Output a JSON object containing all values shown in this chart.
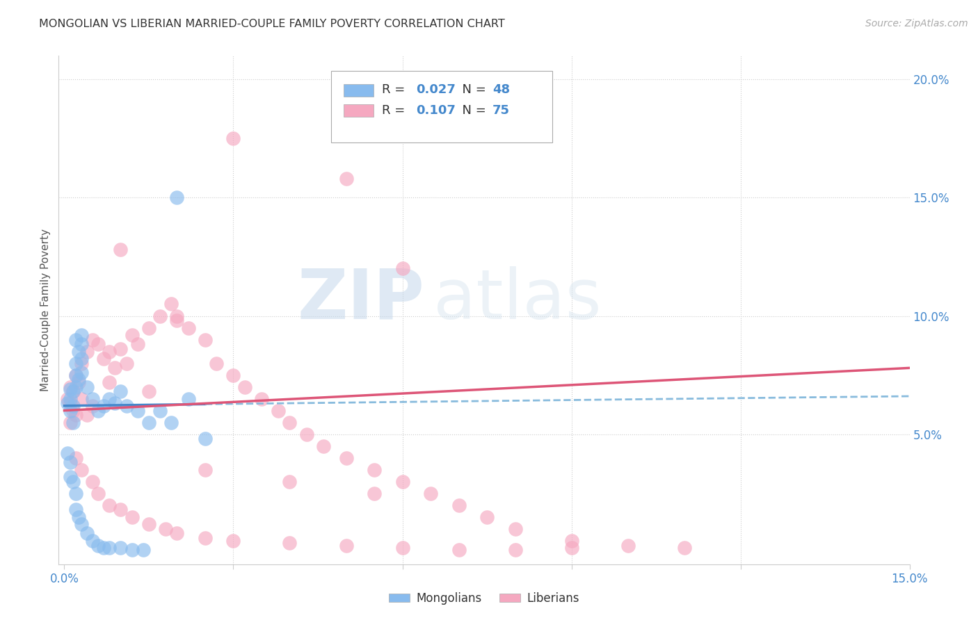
{
  "title": "MONGOLIAN VS LIBERIAN MARRIED-COUPLE FAMILY POVERTY CORRELATION CHART",
  "source": "Source: ZipAtlas.com",
  "ylabel": "Married-Couple Family Poverty",
  "xmin": 0.0,
  "xmax": 0.15,
  "ymin": -0.005,
  "ymax": 0.21,
  "grid_color": "#cccccc",
  "background_color": "#ffffff",
  "mongolian_color": "#88bbee",
  "liberian_color": "#f5a8c0",
  "mongolian_R": 0.027,
  "mongolian_N": 48,
  "liberian_R": 0.107,
  "liberian_N": 75,
  "trend_mongolian_solid_color": "#4488cc",
  "trend_mongolian_dashed_color": "#88bbdd",
  "trend_liberian_color": "#dd5577",
  "watermark_zip": "ZIP",
  "watermark_atlas": "atlas",
  "legend_label_mongolian": "Mongolians",
  "legend_label_liberian": "Liberians",
  "mongolian_x": [
    0.0005,
    0.001,
    0.001,
    0.001,
    0.0015,
    0.0015,
    0.0015,
    0.002,
    0.002,
    0.002,
    0.002,
    0.0025,
    0.0025,
    0.003,
    0.003,
    0.003,
    0.003,
    0.004,
    0.005,
    0.006,
    0.007,
    0.008,
    0.009,
    0.01,
    0.011,
    0.013,
    0.015,
    0.017,
    0.019,
    0.022,
    0.0005,
    0.001,
    0.001,
    0.0015,
    0.002,
    0.002,
    0.0025,
    0.003,
    0.004,
    0.005,
    0.006,
    0.007,
    0.008,
    0.01,
    0.012,
    0.014,
    0.025,
    0.02
  ],
  "mongolian_y": [
    0.063,
    0.069,
    0.065,
    0.06,
    0.068,
    0.062,
    0.055,
    0.07,
    0.075,
    0.08,
    0.09,
    0.085,
    0.073,
    0.092,
    0.088,
    0.082,
    0.076,
    0.07,
    0.065,
    0.06,
    0.062,
    0.065,
    0.063,
    0.068,
    0.062,
    0.06,
    0.055,
    0.06,
    0.055,
    0.065,
    0.042,
    0.038,
    0.032,
    0.03,
    0.025,
    0.018,
    0.015,
    0.012,
    0.008,
    0.005,
    0.003,
    0.002,
    0.002,
    0.002,
    0.001,
    0.001,
    0.048,
    0.15
  ],
  "liberian_x": [
    0.0005,
    0.001,
    0.001,
    0.001,
    0.0015,
    0.0015,
    0.002,
    0.002,
    0.0025,
    0.003,
    0.003,
    0.004,
    0.004,
    0.005,
    0.005,
    0.006,
    0.007,
    0.008,
    0.009,
    0.01,
    0.011,
    0.012,
    0.013,
    0.015,
    0.017,
    0.019,
    0.02,
    0.022,
    0.025,
    0.027,
    0.03,
    0.032,
    0.035,
    0.038,
    0.04,
    0.043,
    0.046,
    0.05,
    0.055,
    0.06,
    0.065,
    0.07,
    0.075,
    0.08,
    0.09,
    0.1,
    0.11,
    0.002,
    0.003,
    0.005,
    0.006,
    0.008,
    0.01,
    0.012,
    0.015,
    0.018,
    0.02,
    0.025,
    0.03,
    0.04,
    0.05,
    0.06,
    0.07,
    0.08,
    0.09,
    0.06,
    0.03,
    0.05,
    0.01,
    0.02,
    0.008,
    0.015,
    0.025,
    0.055,
    0.04
  ],
  "liberian_y": [
    0.065,
    0.063,
    0.055,
    0.07,
    0.06,
    0.068,
    0.075,
    0.058,
    0.072,
    0.08,
    0.065,
    0.085,
    0.058,
    0.09,
    0.062,
    0.088,
    0.082,
    0.085,
    0.078,
    0.086,
    0.08,
    0.092,
    0.088,
    0.095,
    0.1,
    0.105,
    0.098,
    0.095,
    0.09,
    0.08,
    0.075,
    0.07,
    0.065,
    0.06,
    0.055,
    0.05,
    0.045,
    0.04,
    0.035,
    0.03,
    0.025,
    0.02,
    0.015,
    0.01,
    0.005,
    0.003,
    0.002,
    0.04,
    0.035,
    0.03,
    0.025,
    0.02,
    0.018,
    0.015,
    0.012,
    0.01,
    0.008,
    0.006,
    0.005,
    0.004,
    0.003,
    0.002,
    0.001,
    0.001,
    0.002,
    0.12,
    0.175,
    0.158,
    0.128,
    0.1,
    0.072,
    0.068,
    0.035,
    0.025,
    0.03
  ]
}
